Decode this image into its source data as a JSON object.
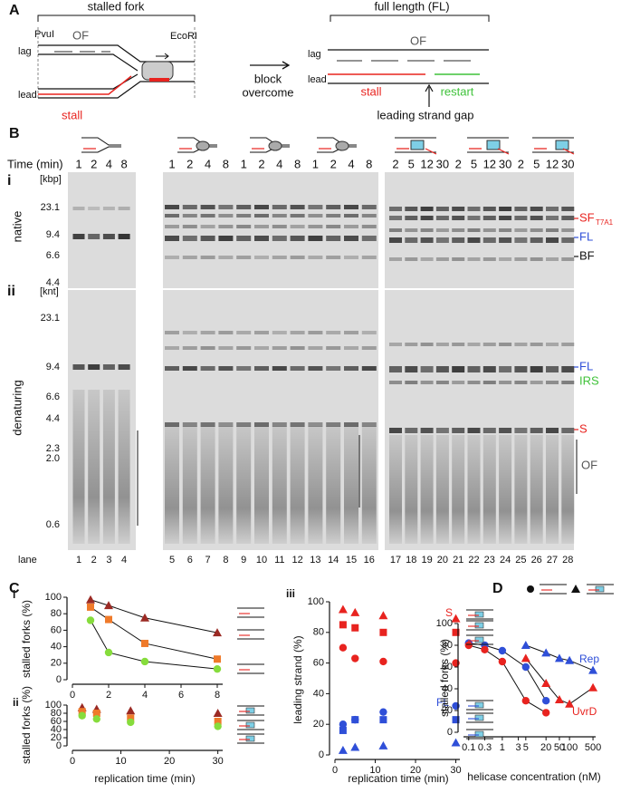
{
  "panel_a": {
    "label": "A",
    "stalled_fork": {
      "title": "stalled fork",
      "pvui": "PvuI",
      "of": "OF",
      "ecori": "EcoRI",
      "lag": "lag",
      "lead": "lead",
      "stall": "stall"
    },
    "arrow_label": [
      "block",
      "overcome"
    ],
    "full_length": {
      "title": "full length (FL)",
      "of": "OF",
      "lag": "lag",
      "lead": "lead",
      "stall": "stall",
      "restart": "restart",
      "gap": "leading strand gap"
    }
  },
  "panel_b": {
    "label": "B",
    "time_label": "Time (min)",
    "times": [
      1,
      2,
      4,
      8,
      1,
      2,
      4,
      8,
      1,
      2,
      4,
      8,
      1,
      2,
      4,
      8,
      2,
      5,
      12,
      30,
      2,
      5,
      12,
      30,
      2,
      5,
      12,
      30
    ],
    "lane_label": "lane",
    "lanes": [
      1,
      2,
      3,
      4,
      5,
      6,
      7,
      8,
      9,
      10,
      11,
      12,
      13,
      14,
      15,
      16,
      17,
      18,
      19,
      20,
      21,
      22,
      23,
      24,
      25,
      26,
      27,
      28
    ],
    "native": {
      "label": "i",
      "unit": "[kbp]",
      "markers": [
        "23.1",
        "9.4",
        "6.6",
        "4.4"
      ],
      "condition": "native",
      "bands": {
        "sf": {
          "text": "SF",
          "subscript": "T7A1"
        },
        "fl": "FL",
        "bf": "BF"
      }
    },
    "denaturing": {
      "label": "ii",
      "unit": "[knt]",
      "markers": [
        "23.1",
        "9.4",
        "6.6",
        "4.4",
        "2.3",
        "2.0",
        "0.6"
      ],
      "condition": "denaturing",
      "bands": {
        "fl": "FL",
        "irs": "IRS",
        "s": "S",
        "of": "OF"
      }
    }
  },
  "panel_c": {
    "label": "C"
  },
  "panel_d": {
    "label": "D"
  },
  "chart_data": [
    {
      "type": "line",
      "label": "i",
      "ylabel": "stalled forks (%)",
      "x": [
        1,
        2,
        4,
        8
      ],
      "xlim": [
        0,
        8.3
      ],
      "xticks": [
        0,
        2,
        4,
        6,
        8
      ],
      "ylim": [
        0,
        100
      ],
      "yticks": [
        0,
        20,
        40,
        60,
        80,
        100
      ],
      "lines": true,
      "series": [
        {
          "color": "#9b2a24",
          "marker": "triangle",
          "values": [
            97,
            90,
            75,
            57
          ]
        },
        {
          "color": "#ef7a2a",
          "marker": "square",
          "values": [
            88,
            73,
            44,
            25
          ]
        },
        {
          "color": "#86dc3c",
          "marker": "circle",
          "values": [
            72,
            33,
            22,
            13
          ]
        }
      ]
    },
    {
      "type": "line",
      "label": "ii",
      "ylabel": "stalled forks (%)",
      "xlabel": "replication time (min)",
      "x": [
        2,
        5,
        12,
        30
      ],
      "xlim": [
        0,
        31
      ],
      "xticks": [
        0,
        10,
        20,
        30
      ],
      "ylim": [
        0,
        100
      ],
      "yticks": [
        0,
        20,
        40,
        60,
        80,
        100
      ],
      "lines": false,
      "series": [
        {
          "color": "#9b2a24",
          "marker": "triangle",
          "values": [
            94,
            90,
            86,
            80
          ]
        },
        {
          "color": "#ef7a2a",
          "marker": "square",
          "values": [
            84,
            80,
            68,
            60
          ]
        },
        {
          "color": "#86dc3c",
          "marker": "circle",
          "values": [
            74,
            66,
            58,
            48
          ]
        }
      ]
    },
    {
      "type": "line",
      "label": "iii",
      "ylabel": "leading strand (%)",
      "xlabel": "replication time (min)",
      "x": [
        2,
        5,
        12,
        30
      ],
      "xlim": [
        0,
        31
      ],
      "xticks": [
        0,
        10,
        20,
        30
      ],
      "ylim": [
        0,
        100
      ],
      "yticks": [
        0,
        20,
        40,
        60,
        80,
        100
      ],
      "lines": false,
      "annotations": [
        {
          "text": "S",
          "color": "#e8231f"
        },
        {
          "text": "FL",
          "color": "#2f4fd8"
        }
      ],
      "series": [
        {
          "color": "#e8231f",
          "marker": "triangle",
          "values": [
            95,
            93,
            91,
            89
          ]
        },
        {
          "color": "#e8231f",
          "marker": "square",
          "values": [
            85,
            83,
            80,
            80
          ]
        },
        {
          "color": "#e8231f",
          "marker": "circle",
          "values": [
            70,
            63,
            61,
            60
          ]
        },
        {
          "color": "#2f4fd8",
          "marker": "circle",
          "values": [
            20,
            23,
            28,
            32
          ]
        },
        {
          "color": "#2f4fd8",
          "marker": "square",
          "values": [
            16,
            23,
            23,
            23
          ]
        },
        {
          "color": "#2f4fd8",
          "marker": "triangle",
          "values": [
            3,
            5,
            6,
            8
          ]
        }
      ]
    },
    {
      "type": "line",
      "ylabel": "stalled forks (%)",
      "xlabel": "helicase concentration (nM)",
      "xscale": "log",
      "xlim": [
        0.07,
        600
      ],
      "xticks": [
        0.1,
        0.3,
        1,
        3,
        5,
        20,
        50,
        100,
        500
      ],
      "ylim": [
        0,
        100
      ],
      "yticks": [
        0,
        20,
        40,
        60,
        80,
        100
      ],
      "lines": true,
      "annotations": [
        {
          "text": "Rep",
          "color": "#2f4fd8"
        },
        {
          "text": "UvrD",
          "color": "#e8231f"
        }
      ],
      "series": [
        {
          "color": "#2f4fd8",
          "marker": "circle",
          "x": [
            0.1,
            0.3,
            1,
            5,
            20
          ],
          "values": [
            82,
            80,
            75,
            60,
            29
          ]
        },
        {
          "color": "#e8231f",
          "marker": "circle",
          "x": [
            0.1,
            0.3,
            1,
            5,
            20
          ],
          "values": [
            80,
            76,
            65,
            29,
            18
          ]
        },
        {
          "color": "#2f4fd8",
          "marker": "triangle",
          "x": [
            5,
            20,
            50,
            100,
            500
          ],
          "values": [
            80,
            73,
            68,
            66,
            57
          ]
        },
        {
          "color": "#e8231f",
          "marker": "triangle",
          "x": [
            5,
            20,
            50,
            100,
            500
          ],
          "values": [
            68,
            45,
            30,
            26,
            41
          ]
        }
      ]
    }
  ]
}
